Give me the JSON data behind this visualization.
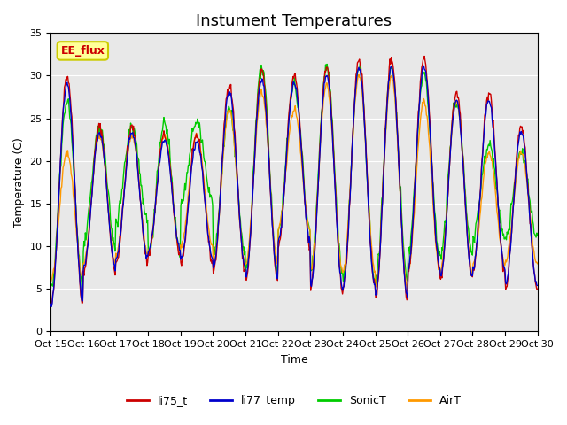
{
  "title": "Instument Temperatures",
  "xlabel": "Time",
  "ylabel": "Temperature (C)",
  "ylim": [
    0,
    35
  ],
  "yticks": [
    0,
    5,
    10,
    15,
    20,
    25,
    30,
    35
  ],
  "xtick_labels": [
    "Oct 15",
    "Oct 16",
    "Oct 17",
    "Oct 18",
    "Oct 19",
    "Oct 20",
    "Oct 21",
    "Oct 22",
    "Oct 23",
    "Oct 24",
    "Oct 25",
    "Oct 26",
    "Oct 27",
    "Oct 28",
    "Oct 29",
    "Oct 30"
  ],
  "series_colors": {
    "li75_t": "#cc0000",
    "li77_temp": "#0000cc",
    "SonicT": "#00cc00",
    "AirT": "#ff9900"
  },
  "annotation_text": "EE_flux",
  "annotation_color": "#cc0000",
  "annotation_bg": "#ffff99",
  "annotation_border": "#cccc00",
  "bg_color": "#e8e8e8",
  "title_fontsize": 13,
  "axis_fontsize": 9,
  "tick_fontsize": 8
}
